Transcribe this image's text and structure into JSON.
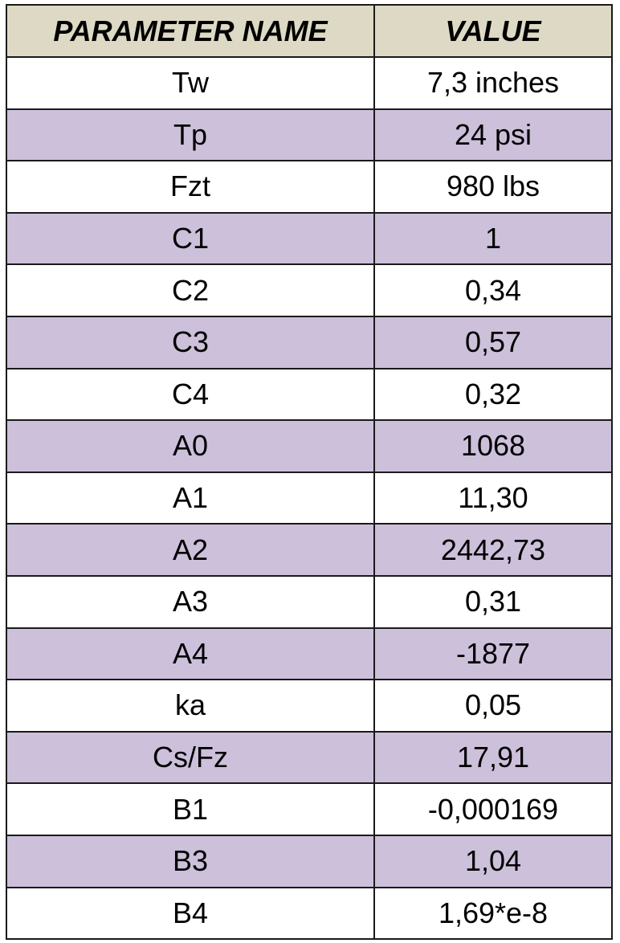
{
  "table": {
    "header": [
      "PARAMETER NAME",
      "VALUE"
    ],
    "rows": [
      [
        "Tw",
        "7,3 inches"
      ],
      [
        "Tp",
        "24 psi"
      ],
      [
        "Fzt",
        "980 lbs"
      ],
      [
        "C1",
        "1"
      ],
      [
        "C2",
        "0,34"
      ],
      [
        "C3",
        "0,57"
      ],
      [
        "C4",
        "0,32"
      ],
      [
        "A0",
        "1068"
      ],
      [
        "A1",
        "11,30"
      ],
      [
        "A2",
        "2442,73"
      ],
      [
        "A3",
        "0,31"
      ],
      [
        "A4",
        "-1877"
      ],
      [
        "ka",
        "0,05"
      ],
      [
        "Cs/Fz",
        "17,91"
      ],
      [
        "B1",
        "-0,000169"
      ],
      [
        "B3",
        "1,04"
      ],
      [
        "B4",
        "1,69*e-8"
      ]
    ]
  }
}
